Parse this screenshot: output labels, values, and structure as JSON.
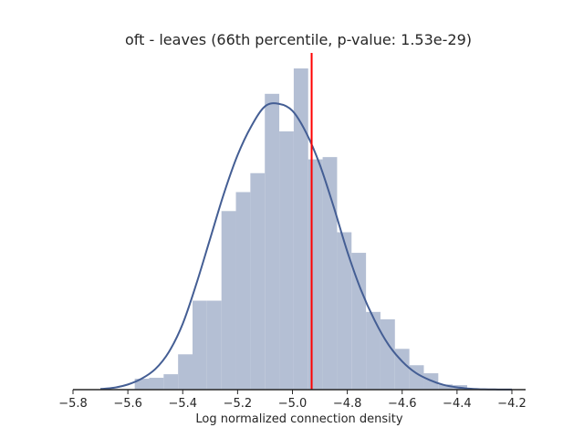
{
  "chart_data": {
    "type": "bar",
    "title": "oft - leaves (66th percentile, p-value: 1.53e-29)",
    "xlabel": "Log normalized connection density",
    "ylabel": "",
    "xlim": [
      -5.8,
      -4.15
    ],
    "ylim": [
      0,
      1
    ],
    "x_ticks": [
      -5.8,
      -5.6,
      -5.4,
      -5.2,
      -5.0,
      -4.8,
      -4.6,
      -4.4,
      -4.2
    ],
    "x_tick_labels": [
      "−5.8",
      "−5.6",
      "−5.4",
      "−5.2",
      "−5.0",
      "−4.8",
      "−4.6",
      "−4.4",
      "−4.2"
    ],
    "histogram": {
      "bin_start": -5.575,
      "bin_width": 0.0527,
      "counts": [
        0.034,
        0.037,
        0.048,
        0.11,
        0.277,
        0.277,
        0.556,
        0.615,
        0.674,
        0.921,
        0.804,
        1.0,
        0.717,
        0.724,
        0.49,
        0.426,
        0.242,
        0.219,
        0.127,
        0.076,
        0.051,
        0.016,
        0.014
      ]
    },
    "kde": {
      "x": [
        -5.7,
        -5.65,
        -5.6,
        -5.55,
        -5.5,
        -5.45,
        -5.4,
        -5.35,
        -5.3,
        -5.25,
        -5.2,
        -5.15,
        -5.1,
        -5.05,
        -5.0,
        -4.95,
        -4.9,
        -4.85,
        -4.8,
        -4.75,
        -4.7,
        -4.65,
        -4.6,
        -4.55,
        -4.5,
        -4.45,
        -4.4,
        -4.35,
        -4.3,
        -4.25,
        -4.2
      ],
      "y": [
        0.002,
        0.006,
        0.016,
        0.034,
        0.064,
        0.118,
        0.205,
        0.33,
        0.47,
        0.61,
        0.73,
        0.82,
        0.882,
        0.89,
        0.868,
        0.8,
        0.7,
        0.57,
        0.43,
        0.31,
        0.215,
        0.14,
        0.088,
        0.052,
        0.03,
        0.015,
        0.007,
        0.003,
        0.001,
        0.0005,
        0.0002
      ]
    },
    "reference_line": {
      "x": -4.93,
      "color": "#ff0000"
    },
    "colors": {
      "bars": "#b4bfd4",
      "kde": "#445e94",
      "axis": "#262626"
    },
    "grid": false
  }
}
